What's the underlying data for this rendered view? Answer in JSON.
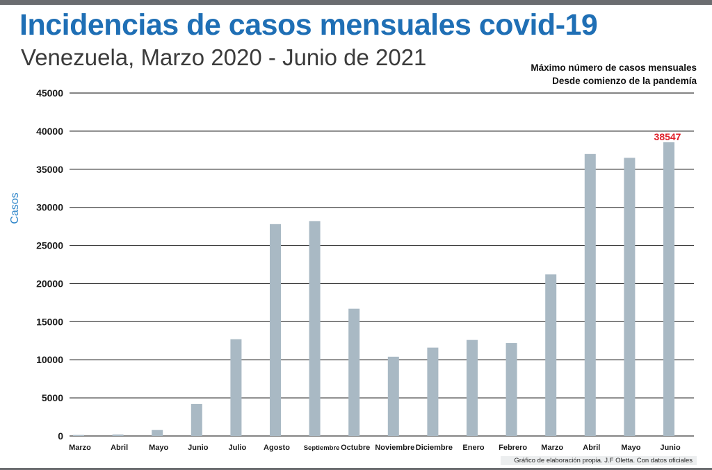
{
  "header": {
    "title": "Incidencias de casos mensuales covid-19",
    "subtitle": "Venezuela, Marzo 2020 - Junio de 2021"
  },
  "note": {
    "line1": "Máximo número de casos mensuales",
    "line2": "Desde comienzo de la pandemía"
  },
  "footer": "Gráfico de elaboración propia. J.F Oletta. Con datos oficiales",
  "colors": {
    "bar": "#a9b9c4",
    "title": "#1f6fb5",
    "ylabel": "#2f86c9",
    "highlight": "#e0202a",
    "grid": "#3a3a3a"
  },
  "chart_data": {
    "type": "bar",
    "title": "Incidencias de casos mensuales covid-19",
    "subtitle": "Venezuela, Marzo 2020 - Junio de 2021",
    "xlabel": "",
    "ylabel": "Casos",
    "ylim": [
      0,
      45000
    ],
    "yticks": [
      0,
      5000,
      10000,
      15000,
      20000,
      25000,
      30000,
      35000,
      40000,
      45000
    ],
    "grid": true,
    "categories": [
      "Marzo",
      "Abril",
      "Mayo",
      "Junio",
      "Julio",
      "Agosto",
      "Septiembre",
      "Octubre",
      "Noviembre",
      "Diciembre",
      "Enero",
      "Febrero",
      "Marzo",
      "Abril",
      "Mayo",
      "Junio"
    ],
    "values": [
      135,
      200,
      800,
      4200,
      12700,
      27800,
      28200,
      16700,
      10400,
      11600,
      12600,
      12200,
      21200,
      37000,
      36500,
      38547
    ],
    "annotations": [
      {
        "index": 15,
        "text": "38547"
      }
    ]
  }
}
